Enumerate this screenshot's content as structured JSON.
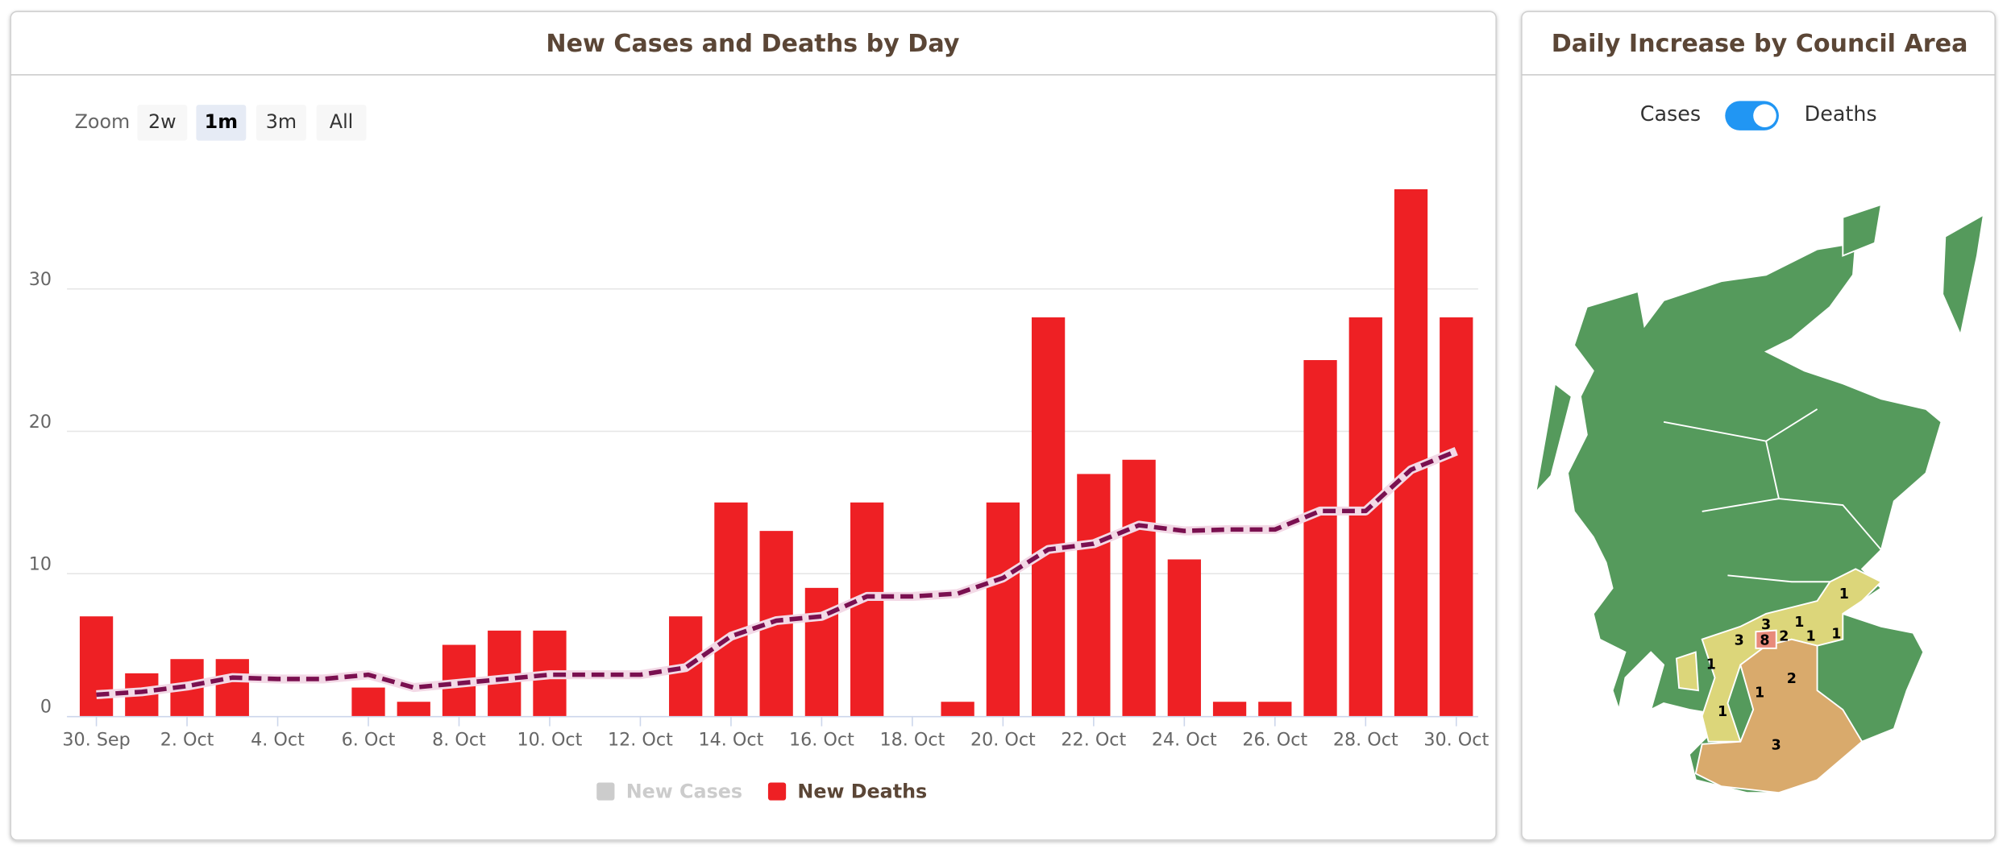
{
  "chart_data": {
    "type": "bar",
    "title": "New Cases and Deaths by Day",
    "categories": [
      "30. Sep",
      null,
      "2. Oct",
      null,
      "4. Oct",
      null,
      "6. Oct",
      null,
      "8. Oct",
      null,
      "10. Oct",
      null,
      "12. Oct",
      null,
      "14. Oct",
      null,
      "16. Oct",
      null,
      "18. Oct",
      null,
      "20. Oct",
      null,
      "22. Oct",
      null,
      "24. Oct",
      null,
      "26. Oct",
      null,
      "28. Oct",
      null,
      "30. Oct"
    ],
    "series": [
      {
        "name": "New Deaths",
        "type": "bar",
        "color": "#ee2024",
        "values": [
          7,
          3,
          4,
          4,
          0,
          0,
          2,
          1,
          5,
          6,
          6,
          0,
          0,
          7,
          15,
          13,
          9,
          15,
          0,
          1,
          15,
          28,
          17,
          18,
          11,
          1,
          1,
          25,
          28,
          37,
          28
        ]
      },
      {
        "type": "line",
        "color": "#7a1050",
        "dashed": true,
        "values": [
          1.5,
          1.7,
          2.1,
          2.7,
          2.6,
          2.6,
          2.9,
          2.0,
          2.3,
          2.6,
          2.9,
          2.9,
          2.9,
          3.4,
          5.6,
          6.7,
          7.0,
          8.4,
          8.4,
          8.6,
          9.7,
          11.7,
          12.1,
          13.4,
          13.0,
          13.1,
          13.1,
          14.4,
          14.4,
          17.3,
          18.6
        ]
      }
    ],
    "hidden_series": [
      {
        "name": "New Cases",
        "color": "#cccccc"
      }
    ],
    "ylim": [
      0,
      40
    ],
    "yticks": [
      0,
      10,
      20,
      30
    ],
    "grid": true
  },
  "zoom": {
    "label": "Zoom",
    "buttons": [
      "2w",
      "1m",
      "3m",
      "All"
    ],
    "selected": "1m"
  },
  "map": {
    "title": "Daily Increase by Council Area",
    "toggle": [
      "Cases",
      "Deaths"
    ],
    "toggle_on": "Deaths",
    "labels": [
      1,
      3,
      1,
      3,
      8,
      2,
      1,
      1,
      1,
      2,
      1,
      1,
      3
    ]
  }
}
